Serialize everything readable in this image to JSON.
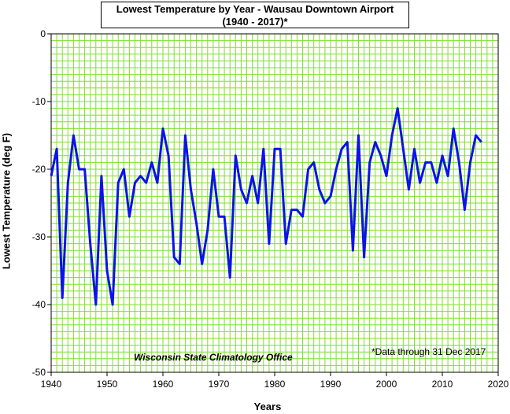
{
  "chart_data": {
    "type": "line",
    "title": "Lowest Temperature by Year - Wausau Downtown Airport",
    "subtitle": "(1940 - 2017)*",
    "xlabel": "Years",
    "ylabel": "Lowest Temperature (deg F)",
    "xlim": [
      1940,
      2020
    ],
    "ylim": [
      -50,
      0
    ],
    "x_ticks": [
      1940,
      1950,
      1960,
      1970,
      1980,
      1990,
      2000,
      2010,
      2020
    ],
    "y_ticks": [
      0,
      -10,
      -20,
      -30,
      -40,
      -50
    ],
    "grid": true,
    "series_color": "#0a14e6",
    "grid_color": "#7ee02a",
    "credit": "Wisconsin State Climatology Office",
    "note": "*Data through 31 Dec 2017",
    "series": [
      {
        "x": [
          1940,
          1941,
          1942,
          1943,
          1944,
          1945,
          1946,
          1947,
          1948,
          1949,
          1950,
          1951,
          1952,
          1953,
          1954,
          1955,
          1956,
          1957,
          1958,
          1959,
          1960,
          1961,
          1962,
          1963,
          1964,
          1965,
          1966,
          1967,
          1968,
          1969,
          1970,
          1971,
          1972,
          1973,
          1974,
          1975,
          1976,
          1977,
          1978,
          1979,
          1980,
          1981,
          1982,
          1983,
          1984,
          1985,
          1986,
          1987,
          1988,
          1989,
          1990,
          1991,
          1992,
          1993,
          1994,
          1995,
          1996,
          1997,
          1998,
          1999,
          2000,
          2001,
          2002,
          2003,
          2004,
          2005,
          2006,
          2007,
          2008,
          2009,
          2010,
          2011,
          2012,
          2013,
          2014,
          2015,
          2016,
          2017
        ],
        "values": [
          -21,
          -17,
          -39,
          -22,
          -15,
          -20,
          -20,
          -31,
          -40,
          -21,
          -35,
          -40,
          -22,
          -20,
          -27,
          -22,
          -21,
          -22,
          -19,
          -22,
          -14,
          -18,
          -33,
          -34,
          -15,
          -23,
          -28,
          -34,
          -29,
          -20,
          -27,
          -27,
          -36,
          -18,
          -23,
          -25,
          -21,
          -25,
          -17,
          -31,
          -17,
          -17,
          -31,
          -26,
          -26,
          -27,
          -20,
          -19,
          -23,
          -25,
          -24,
          -20,
          -17,
          -16,
          -32,
          -15,
          -33,
          -19,
          -16,
          -18,
          -21,
          -15,
          -11,
          -17,
          -23,
          -17,
          -22,
          -19,
          -19,
          -22,
          -18,
          -21,
          -14,
          -19,
          -26,
          -19,
          -15,
          -16
        ]
      }
    ]
  }
}
